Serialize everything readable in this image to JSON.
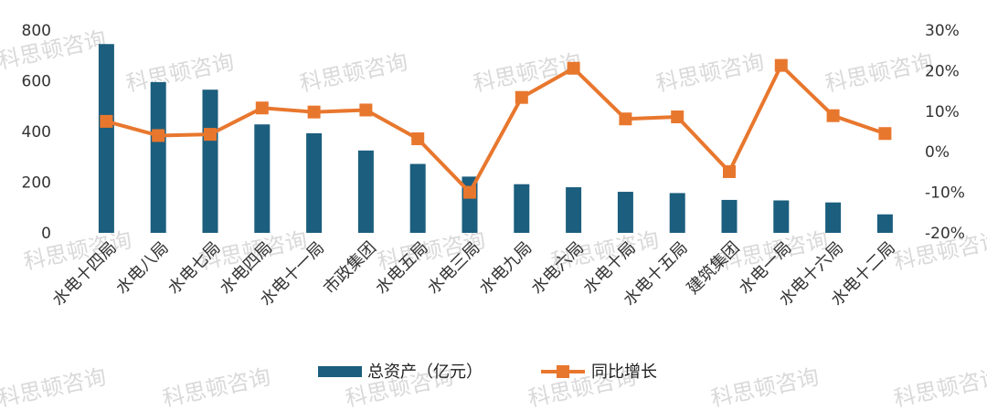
{
  "watermark": "科思顿咨询",
  "chart_data": {
    "type": "bar",
    "categories": [
      "水电十四局",
      "水电八局",
      "水电七局",
      "水电四局",
      "水电十一局",
      "市政集团",
      "水电五局",
      "水电三局",
      "水电九局",
      "水电六局",
      "水电十局",
      "水电十五局",
      "建筑集团",
      "水电一局",
      "水电十六局",
      "水电十二局"
    ],
    "series": [
      {
        "name": "总资产（亿元）",
        "type": "bar",
        "axis": "left",
        "color": "#1b5e7e",
        "values": [
          745,
          595,
          565,
          428,
          393,
          325,
          272,
          222,
          192,
          180,
          162,
          157,
          130,
          128,
          120,
          73
        ]
      },
      {
        "name": "同比增长",
        "type": "line",
        "axis": "right",
        "color": "#e8772e",
        "unit": "%",
        "values": [
          7.5,
          4.0,
          4.3,
          10.8,
          9.8,
          10.3,
          3.2,
          -10.0,
          13.4,
          20.6,
          8.1,
          8.6,
          -4.9,
          21.3,
          8.9,
          4.5
        ]
      }
    ],
    "y_left": {
      "min": 0,
      "max": 800,
      "ticks": [
        "0",
        "200",
        "400",
        "600",
        "800"
      ]
    },
    "y_right": {
      "min": -20,
      "max": 30,
      "ticks": [
        "-20%",
        "-10%",
        "0%",
        "10%",
        "20%",
        "30%"
      ]
    },
    "legend": {
      "position": "bottom",
      "labels": [
        "总资产（亿元）",
        "同比增长"
      ]
    },
    "grid": false
  }
}
